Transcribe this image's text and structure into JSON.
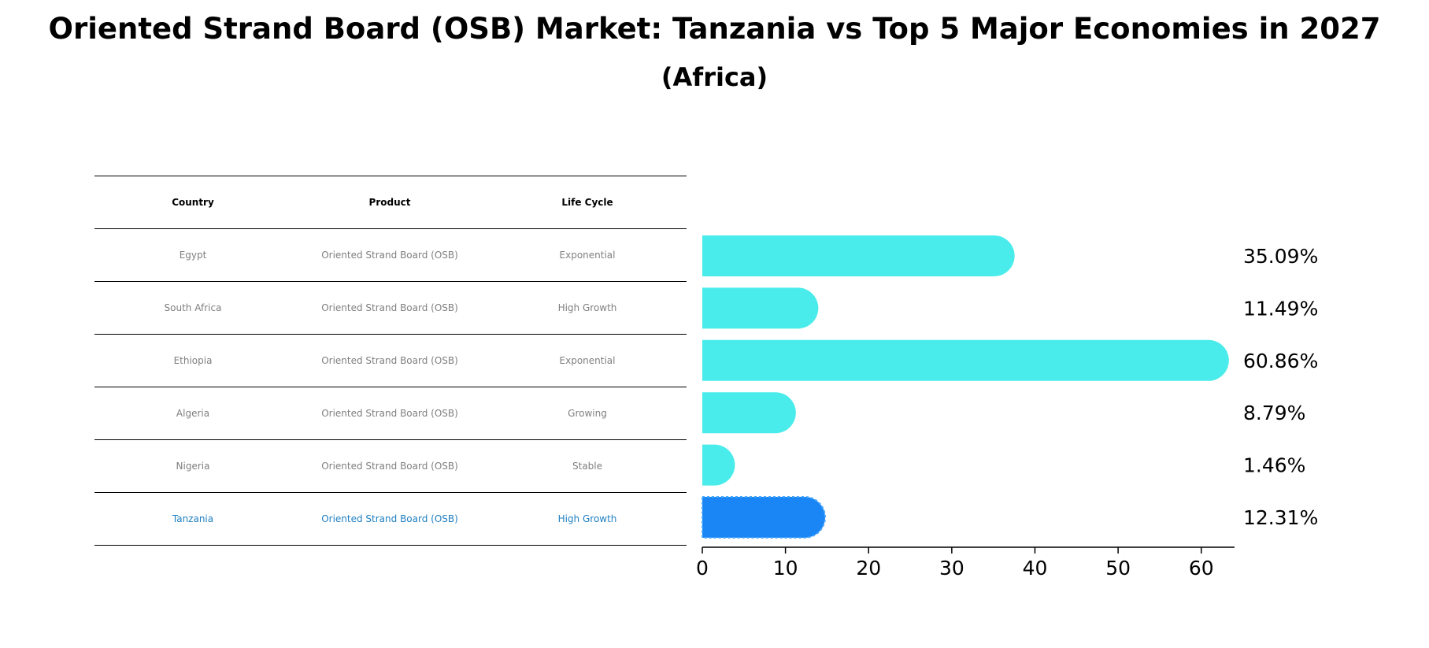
{
  "title": "Oriented Strand Board (OSB) Market: Tanzania vs Top 5 Major Economies in 2027",
  "subtitle": "(Africa)",
  "table": {
    "headers": [
      "Country",
      "Product",
      "Life Cycle"
    ],
    "rows": [
      {
        "country": "Egypt",
        "product": "Oriented Strand Board (OSB)",
        "life_cycle": "Exponential"
      },
      {
        "country": "South Africa",
        "product": "Oriented Strand Board (OSB)",
        "life_cycle": "High Growth"
      },
      {
        "country": "Ethiopia",
        "product": "Oriented Strand Board (OSB)",
        "life_cycle": "Exponential"
      },
      {
        "country": "Algeria",
        "product": "Oriented Strand Board (OSB)",
        "life_cycle": "Growing"
      },
      {
        "country": "Nigeria",
        "product": "Oriented Strand Board (OSB)",
        "life_cycle": "Stable"
      },
      {
        "country": "Tanzania",
        "product": "Oriented Strand Board (OSB)",
        "life_cycle": "High Growth"
      }
    ]
  },
  "chart_data": {
    "type": "bar",
    "orientation": "horizontal",
    "categories": [
      "Egypt",
      "South Africa",
      "Ethiopia",
      "Algeria",
      "Nigeria",
      "Tanzania"
    ],
    "values": [
      35.09,
      11.49,
      60.86,
      8.79,
      1.46,
      12.31
    ],
    "value_labels": [
      "35.09%",
      "11.49%",
      "60.86%",
      "8.79%",
      "1.46%",
      "12.31%"
    ],
    "highlight": "Tanzania",
    "xlim": [
      0,
      64
    ],
    "xticks": [
      0,
      10,
      20,
      30,
      40,
      50,
      60
    ],
    "grid": false,
    "colors": {
      "bar": "#4aeceb",
      "highlight": "#1a86f5",
      "text_muted": "#7f7f7f",
      "text_highlight": "#1f7fc1"
    }
  }
}
